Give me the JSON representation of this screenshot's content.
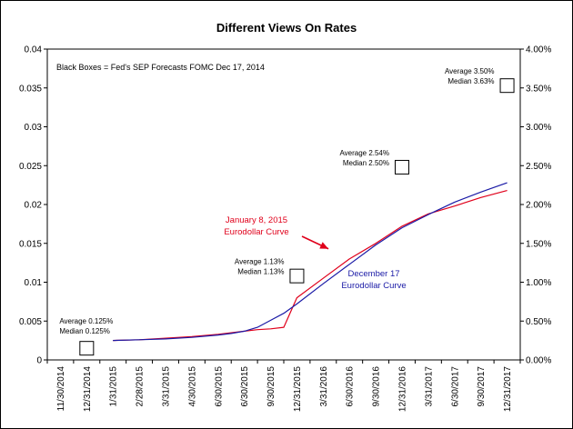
{
  "chart_data": {
    "type": "line",
    "title": "Different Views On Rates",
    "legend_note": "Black Boxes = Fed's SEP Forecasts FOMC Dec 17, 2014",
    "x_tick_labels": [
      "11/30/2014",
      "12/31/2014",
      "1/31/2015",
      "2/28/2015",
      "3/31/2015",
      "4/30/2015",
      "6/30/2015",
      "6/30/2015",
      "9/30/2015",
      "12/31/2015",
      "3/31/2016",
      "6/30/2016",
      "9/30/2016",
      "12/31/2016",
      "3/31/2017",
      "6/30/2017",
      "9/30/2017",
      "12/31/2017"
    ],
    "y_left": {
      "ylim": [
        0,
        0.04
      ],
      "ticks": [
        "0",
        "0.005",
        "0.01",
        "0.015",
        "0.02",
        "0.025",
        "0.03",
        "0.035",
        "0.04"
      ]
    },
    "y_right": {
      "ylim": [
        0,
        4.0
      ],
      "ticks": [
        "0.00%",
        "0.50%",
        "1.00%",
        "1.50%",
        "2.00%",
        "2.50%",
        "3.00%",
        "3.50%",
        "4.00%"
      ]
    },
    "series": [
      {
        "name": "January 8, 2015 Eurodollar Curve",
        "color": "#e0001b",
        "x": [
          2,
          3,
          4,
          5,
          6,
          6.5,
          7,
          7.5,
          8,
          8.5,
          9,
          10,
          11,
          12,
          13,
          14,
          15,
          16,
          17
        ],
        "y": [
          0.0025,
          0.0026,
          0.0028,
          0.003,
          0.0033,
          0.0035,
          0.0037,
          0.0039,
          0.004,
          0.0042,
          0.008,
          0.0105,
          0.013,
          0.015,
          0.0172,
          0.0188,
          0.0198,
          0.0209,
          0.0218
        ]
      },
      {
        "name": "December 17 Eurodollar Curve",
        "color": "#1a1aa6",
        "x": [
          2,
          3,
          4,
          5,
          6,
          6.5,
          7,
          7.5,
          8,
          8.5,
          9,
          10,
          11,
          12,
          13,
          14,
          15,
          16,
          17
        ],
        "y": [
          0.0025,
          0.0026,
          0.0027,
          0.0029,
          0.0032,
          0.0034,
          0.0037,
          0.0042,
          0.0051,
          0.006,
          0.0072,
          0.0098,
          0.0123,
          0.0148,
          0.017,
          0.0187,
          0.0203,
          0.0216,
          0.0228
        ]
      }
    ],
    "fed_sep_boxes": [
      {
        "x": 1,
        "y": 0.0015,
        "avg_label": "Average 0.125%",
        "med_label": "Median 0.125%"
      },
      {
        "x": 9,
        "y": 0.0108,
        "avg_label": "Average 1.13%",
        "med_label": "Median 1.13%"
      },
      {
        "x": 13,
        "y": 0.0248,
        "avg_label": "Average 2.54%",
        "med_label": "Median 2.50%"
      },
      {
        "x": 17,
        "y": 0.0353,
        "avg_label": "Average 3.50%",
        "med_label": "Median 3.63%"
      }
    ],
    "annotations": [
      {
        "series": 0,
        "lines": [
          "January 8, 2015",
          "Eurodollar Curve"
        ],
        "arrow_to_x": 10.2,
        "arrow_to_y": 0.0143
      },
      {
        "series": 1,
        "lines": [
          "December 17",
          "Eurodollar Curve"
        ]
      }
    ]
  }
}
